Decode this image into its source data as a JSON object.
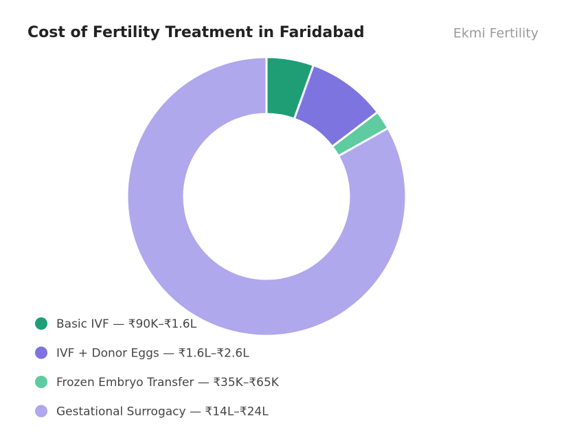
{
  "chart_data": {
    "type": "pie",
    "title": "Cost of Fertility Treatment in Faridabad",
    "brand": "Ekmi Fertility",
    "categories": [
      "Basic IVF — ₹90K–₹1.6L",
      "IVF + Donor Eggs — ₹1.6L–₹2.6L",
      "Frozen Embryo Transfer — ₹35K–₹65K",
      "Gestational Surrogacy — ₹14L–₹24L"
    ],
    "values": [
      1.25,
      2.1,
      0.5,
      19
    ],
    "colors": [
      "#1f9e76",
      "#7d74e0",
      "#5ecba1",
      "#afa8ec"
    ],
    "legend": "bottom-left"
  }
}
